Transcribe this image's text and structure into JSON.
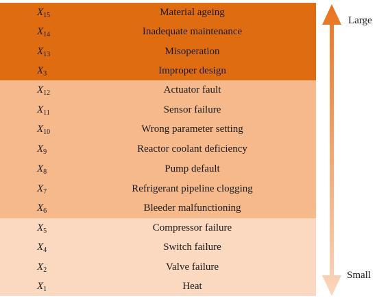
{
  "groups": [
    {
      "color": "#e06c12",
      "rows": [
        {
          "id_letter": "X",
          "id_sub": "15",
          "label": "Material ageing"
        },
        {
          "id_letter": "X",
          "id_sub": "14",
          "label": "Inadequate maintenance"
        },
        {
          "id_letter": "X",
          "id_sub": "13",
          "label": "Misoperation"
        },
        {
          "id_letter": "X",
          "id_sub": "3",
          "label": "Improper design"
        }
      ]
    },
    {
      "color": "#f6b98c",
      "rows": [
        {
          "id_letter": "X",
          "id_sub": "12",
          "label": "Actuator fault"
        },
        {
          "id_letter": "X",
          "id_sub": "11",
          "label": "Sensor failure"
        },
        {
          "id_letter": "X",
          "id_sub": "10",
          "label": "Wrong parameter setting"
        },
        {
          "id_letter": "X",
          "id_sub": "9",
          "label": "Reactor coolant deficiency"
        },
        {
          "id_letter": "X",
          "id_sub": "8",
          "label": "Pump default"
        },
        {
          "id_letter": "X",
          "id_sub": "7",
          "label": "Refrigerant pipeline clogging"
        },
        {
          "id_letter": "X",
          "id_sub": "6",
          "label": "Bleeder malfunctioning"
        }
      ]
    },
    {
      "color": "#fbd8c0",
      "rows": [
        {
          "id_letter": "X",
          "id_sub": "5",
          "label": "Compressor failure"
        },
        {
          "id_letter": "X",
          "id_sub": "4",
          "label": "Switch failure"
        },
        {
          "id_letter": "X",
          "id_sub": "2",
          "label": "Valve failure"
        },
        {
          "id_letter": "X",
          "id_sub": "1",
          "label": "Heat"
        }
      ]
    }
  ],
  "scale": {
    "top_label": "Large",
    "bottom_label": "Small",
    "arrow_color_top": "#e8731f",
    "arrow_color_bottom": "#fbd6bd"
  }
}
